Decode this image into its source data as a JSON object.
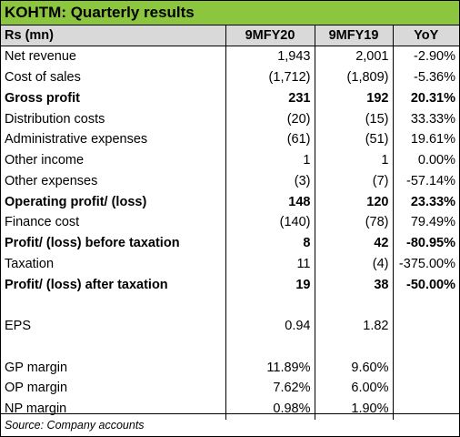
{
  "title": "KOHTM: Quarterly results",
  "header": {
    "label": "Rs (mn)",
    "col1": "9MFY20",
    "col2": "9MFY19",
    "col3": "YoY"
  },
  "rows": [
    {
      "label": "Net revenue",
      "v1": "1,943",
      "v2": "2,001",
      "yoy": "-2.90%",
      "bold": false
    },
    {
      "label": "Cost of sales",
      "v1": "(1,712)",
      "v2": "(1,809)",
      "yoy": "-5.36%",
      "bold": false
    },
    {
      "label": "Gross profit",
      "v1": "231",
      "v2": "192",
      "yoy": "20.31%",
      "bold": true
    },
    {
      "label": "Distribution costs",
      "v1": "(20)",
      "v2": "(15)",
      "yoy": "33.33%",
      "bold": false
    },
    {
      "label": "Administrative expenses",
      "v1": "(61)",
      "v2": "(51)",
      "yoy": "19.61%",
      "bold": false
    },
    {
      "label": "Other income",
      "v1": "1",
      "v2": "1",
      "yoy": "0.00%",
      "bold": false
    },
    {
      "label": "Other expenses",
      "v1": "(3)",
      "v2": "(7)",
      "yoy": "-57.14%",
      "bold": false
    },
    {
      "label": "Operating profit/ (loss)",
      "v1": "148",
      "v2": "120",
      "yoy": "23.33%",
      "bold": true
    },
    {
      "label": "Finance cost",
      "v1": "(140)",
      "v2": "(78)",
      "yoy": "79.49%",
      "bold": false
    },
    {
      "label": "Profit/ (loss) before taxation",
      "v1": "8",
      "v2": "42",
      "yoy": "-80.95%",
      "bold": true
    },
    {
      "label": "Taxation",
      "v1": "11",
      "v2": "(4)",
      "yoy": "-375.00%",
      "bold": false
    },
    {
      "label": "Profit/ (loss) after taxation",
      "v1": "19",
      "v2": "38",
      "yoy": "-50.00%",
      "bold": true
    },
    {
      "label": "",
      "v1": "",
      "v2": "",
      "yoy": "",
      "bold": false
    },
    {
      "label": "EPS",
      "v1": "0.94",
      "v2": "1.82",
      "yoy": "",
      "bold": false
    },
    {
      "label": "",
      "v1": "",
      "v2": "",
      "yoy": "",
      "bold": false
    },
    {
      "label": "GP margin",
      "v1": "11.89%",
      "v2": "9.60%",
      "yoy": "",
      "bold": false
    },
    {
      "label": "OP margin",
      "v1": "7.62%",
      "v2": "6.00%",
      "yoy": "",
      "bold": false
    },
    {
      "label": "NP margin",
      "v1": "0.98%",
      "v2": "1.90%",
      "yoy": "",
      "bold": false
    }
  ],
  "source": "Source: Company accounts"
}
